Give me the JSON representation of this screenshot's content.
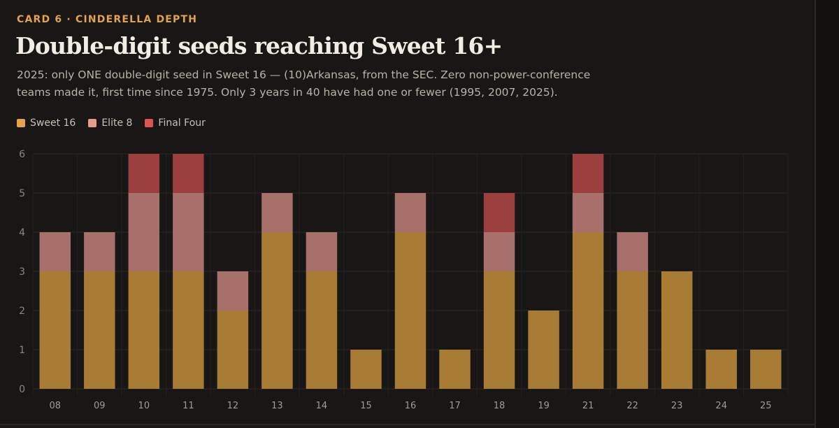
{
  "card": {
    "eyebrow": "CARD 6 · CINDERELLA DEPTH",
    "title": "Double-digit seeds reaching Sweet 16+",
    "subtitle": "2025: only ONE double-digit seed in Sweet 16 — (10)Arkansas, from the SEC. Zero non-power-conference teams made it, first time since 1975. Only 3 years in 40 have had one or fewer (1995, 2007, 2025)."
  },
  "colors": {
    "sweet16": "#a97c35",
    "elite8": "#a7706a",
    "finalfour": "#9b3f3f",
    "legend_sweet16": "#e3a24f",
    "legend_elite8": "#e29d8c",
    "legend_finalfour": "#d9574f"
  },
  "chart_data": {
    "type": "bar",
    "stacked": true,
    "title": "Double-digit seeds reaching Sweet 16+",
    "categories": [
      "08",
      "09",
      "10",
      "11",
      "12",
      "13",
      "14",
      "15",
      "16",
      "17",
      "18",
      "19",
      "21",
      "22",
      "23",
      "24",
      "25"
    ],
    "series": [
      {
        "name": "Sweet 16",
        "values": [
          3,
          3,
          3,
          3,
          2,
          4,
          3,
          1,
          4,
          1,
          3,
          2,
          4,
          3,
          3,
          1,
          1
        ]
      },
      {
        "name": "Elite 8",
        "values": [
          1,
          1,
          2,
          2,
          1,
          1,
          1,
          0,
          1,
          0,
          1,
          0,
          1,
          1,
          0,
          0,
          0
        ]
      },
      {
        "name": "Final Four",
        "values": [
          0,
          0,
          1,
          1,
          0,
          0,
          0,
          0,
          0,
          0,
          1,
          0,
          1,
          0,
          0,
          0,
          0
        ]
      }
    ],
    "yticks": [
      "0",
      "1",
      "2",
      "3",
      "4",
      "5",
      "6"
    ],
    "ylim": [
      0,
      6
    ],
    "grid": true,
    "legend_position": "top-left"
  }
}
